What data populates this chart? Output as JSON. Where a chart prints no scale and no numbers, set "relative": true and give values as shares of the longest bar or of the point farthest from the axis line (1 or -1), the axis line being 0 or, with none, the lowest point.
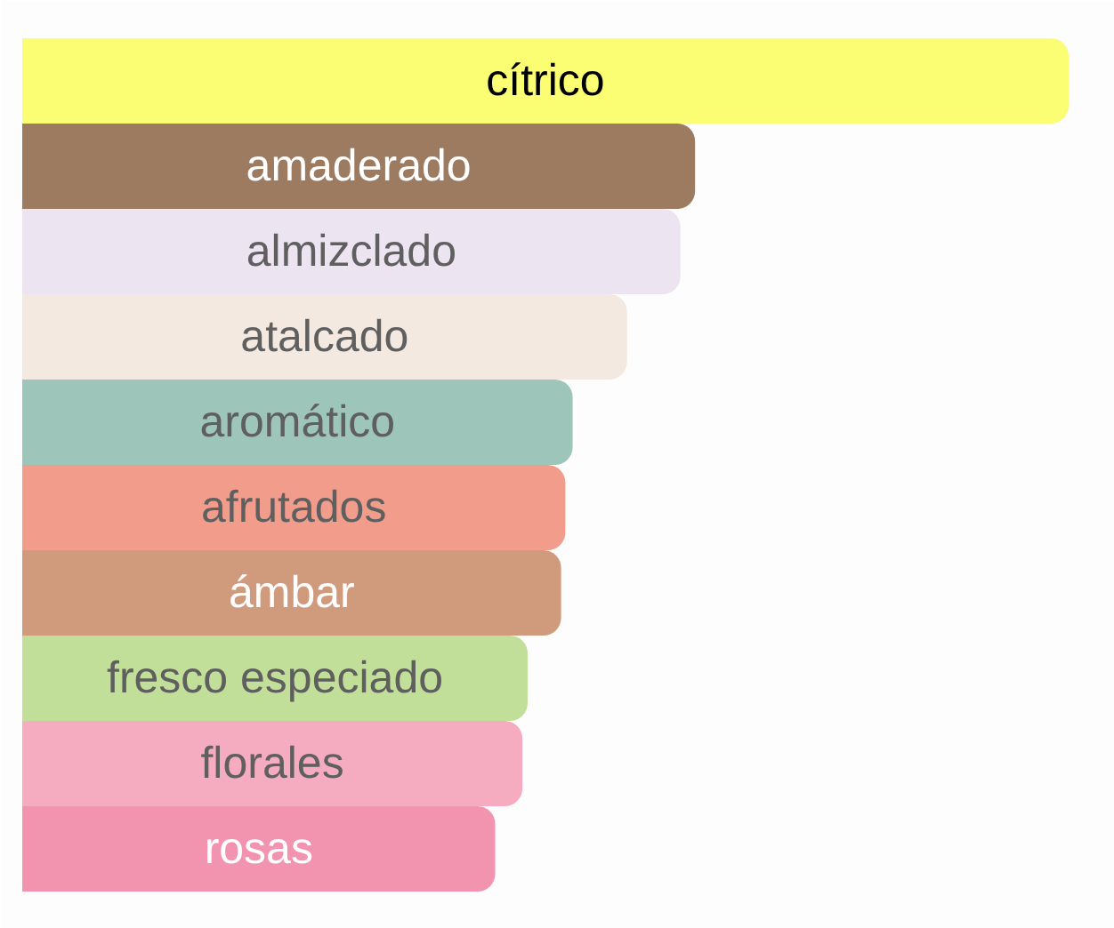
{
  "chart_data": {
    "type": "bar",
    "orientation": "horizontal",
    "relative": true,
    "categories": [
      "cítrico",
      "amaderado",
      "almizclado",
      "atalcado",
      "aromático",
      "afrutados",
      "ámbar",
      "fresco especiado",
      "florales",
      "rosas"
    ],
    "values": [
      1,
      0.643,
      0.629,
      0.578,
      0.526,
      0.519,
      0.515,
      0.483,
      0.478,
      0.452
    ],
    "colors": [
      "#fbfd72",
      "#9c7b61",
      "#ece4f0",
      "#f3e9e0",
      "#9dc5b9",
      "#f29d8b",
      "#d09a7d",
      "#c2df9a",
      "#f5abc0",
      "#f293b0"
    ]
  }
}
